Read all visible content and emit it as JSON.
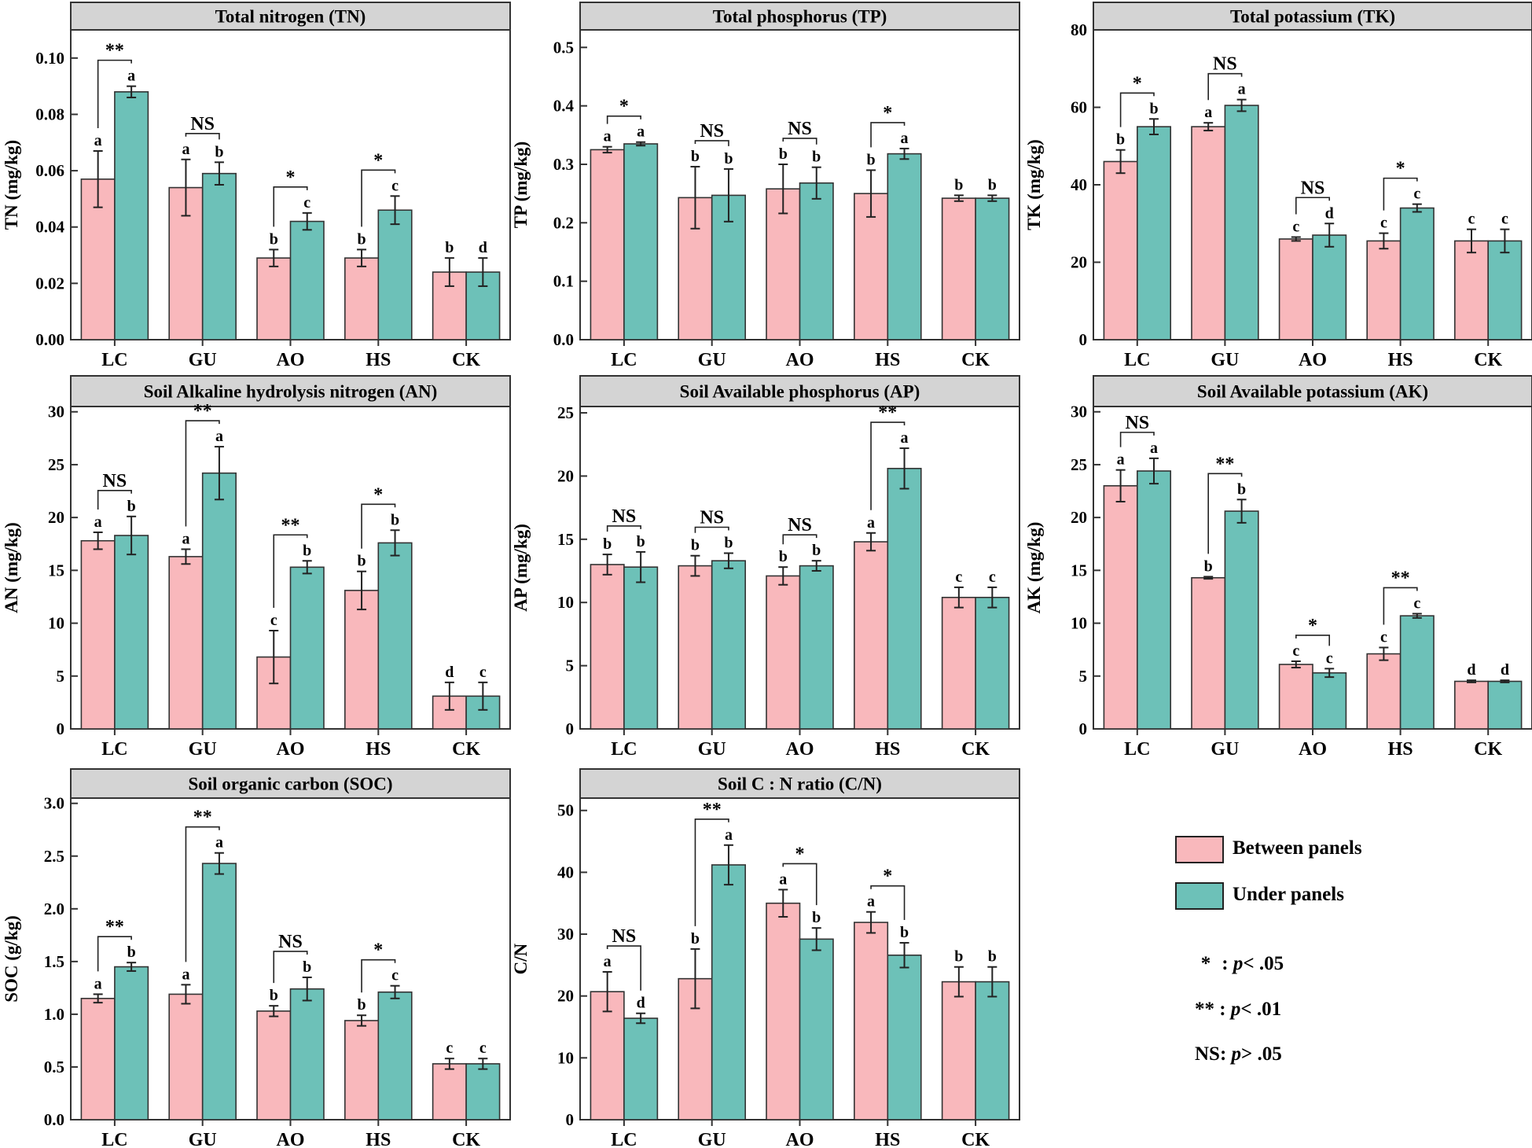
{
  "legend": {
    "series": [
      {
        "name": "Between panels",
        "color": "#f9b8bc"
      },
      {
        "name": "Under panels",
        "color": "#6dc1b8"
      }
    ],
    "notes": [
      {
        "symbol": "*",
        "sep": " : ",
        "p": "p",
        "rel": "< .05"
      },
      {
        "symbol": "**",
        "sep": " : ",
        "p": "p",
        "rel": "< .01"
      },
      {
        "symbol": "NS",
        "sep": ": ",
        "p": "p",
        "rel": "> .05"
      }
    ]
  },
  "chart_data": [
    {
      "type": "bar",
      "title": "Total nitrogen (TN)",
      "ylabel": "TN (mg/kg)",
      "categories": [
        "LC",
        "GU",
        "AO",
        "HS",
        "CK"
      ],
      "ylim": [
        0,
        0.11
      ],
      "yticks": [
        0,
        0.02,
        0.04,
        0.06,
        0.08,
        0.1
      ],
      "ytick_labels": [
        "0.00",
        "0.02",
        "0.04",
        "0.06",
        "0.08",
        "0.10"
      ],
      "series": [
        {
          "name": "Between panels",
          "values": [
            0.057,
            0.054,
            0.029,
            0.029,
            0.024
          ],
          "errors": [
            0.01,
            0.01,
            0.003,
            0.003,
            0.005
          ],
          "letters": [
            "a",
            "a",
            "b",
            "b",
            "b"
          ]
        },
        {
          "name": "Under panels",
          "values": [
            0.088,
            0.059,
            0.042,
            0.046,
            0.024
          ],
          "errors": [
            0.002,
            0.004,
            0.003,
            0.005,
            0.005
          ],
          "letters": [
            "a",
            "b",
            "c",
            "c",
            "d"
          ]
        }
      ],
      "significance": [
        "**",
        "NS",
        "*",
        "*",
        ""
      ]
    },
    {
      "type": "bar",
      "title": "Total phosphorus (TP)",
      "ylabel": "TP (mg/kg)",
      "categories": [
        "LC",
        "GU",
        "AO",
        "HS",
        "CK"
      ],
      "ylim": [
        0,
        0.53
      ],
      "yticks": [
        0,
        0.1,
        0.2,
        0.3,
        0.4,
        0.5
      ],
      "ytick_labels": [
        "0.0",
        "0.1",
        "0.2",
        "0.3",
        "0.4",
        "0.5"
      ],
      "series": [
        {
          "name": "Between panels",
          "values": [
            0.325,
            0.243,
            0.258,
            0.25,
            0.242
          ],
          "errors": [
            0.005,
            0.053,
            0.042,
            0.04,
            0.005
          ],
          "letters": [
            "a",
            "b",
            "b",
            "b",
            "b"
          ]
        },
        {
          "name": "Under panels",
          "values": [
            0.335,
            0.247,
            0.268,
            0.318,
            0.242
          ],
          "errors": [
            0.003,
            0.045,
            0.027,
            0.009,
            0.005
          ],
          "letters": [
            "a",
            "b",
            "b",
            "a",
            "b"
          ]
        }
      ],
      "significance": [
        "*",
        "NS",
        "NS",
        "*",
        ""
      ]
    },
    {
      "type": "bar",
      "title": "Total  potassium (TK)",
      "ylabel": "TK (mg/kg)",
      "categories": [
        "LC",
        "GU",
        "AO",
        "HS",
        "CK"
      ],
      "ylim": [
        0,
        80
      ],
      "yticks": [
        0,
        20,
        40,
        60,
        80
      ],
      "ytick_labels": [
        "0",
        "20",
        "40",
        "60",
        "80"
      ],
      "series": [
        {
          "name": "Between panels",
          "values": [
            46,
            55,
            26,
            25.5,
            25.5
          ],
          "errors": [
            3.0,
            1.0,
            0.5,
            2.0,
            3.0
          ],
          "letters": [
            "b",
            "a",
            "c",
            "c",
            "c"
          ]
        },
        {
          "name": "Under panels",
          "values": [
            55,
            60.5,
            27,
            34,
            25.5
          ],
          "errors": [
            2.0,
            1.5,
            3.0,
            1.0,
            3.0
          ],
          "letters": [
            "b",
            "a",
            "d",
            "c",
            "c"
          ]
        }
      ],
      "significance": [
        "*",
        "NS",
        "NS",
        "*",
        ""
      ]
    },
    {
      "type": "bar",
      "title": "Soil Alkaline hydrolysis nitrogen (AN)",
      "ylabel": "AN (mg/kg)",
      "categories": [
        "LC",
        "GU",
        "AO",
        "HS",
        "CK"
      ],
      "ylim": [
        0,
        30.5
      ],
      "yticks": [
        0,
        5,
        10,
        15,
        20,
        25,
        30
      ],
      "ytick_labels": [
        "0",
        "5",
        "10",
        "15",
        "20",
        "25",
        "30"
      ],
      "series": [
        {
          "name": "Between panels",
          "values": [
            17.8,
            16.3,
            6.8,
            13.1,
            3.1
          ],
          "errors": [
            0.8,
            0.7,
            2.5,
            1.8,
            1.3
          ],
          "letters": [
            "a",
            "a",
            "c",
            "b",
            "d"
          ]
        },
        {
          "name": "Under panels",
          "values": [
            18.3,
            24.2,
            15.3,
            17.6,
            3.1
          ],
          "errors": [
            1.8,
            2.5,
            0.6,
            1.2,
            1.3
          ],
          "letters": [
            "b",
            "a",
            "b",
            "b",
            "c"
          ]
        }
      ],
      "significance": [
        "NS",
        "**",
        "**",
        "*",
        ""
      ]
    },
    {
      "type": "bar",
      "title": "Soil Available phosphorus (AP)",
      "ylabel": "AP (mg/kg)",
      "categories": [
        "LC",
        "GU",
        "AO",
        "HS",
        "CK"
      ],
      "ylim": [
        0,
        25.5
      ],
      "yticks": [
        0,
        5,
        10,
        15,
        20,
        25
      ],
      "ytick_labels": [
        "0",
        "5",
        "10",
        "15",
        "20",
        "25"
      ],
      "series": [
        {
          "name": "Between panels",
          "values": [
            13.0,
            12.9,
            12.1,
            14.8,
            10.4
          ],
          "errors": [
            0.8,
            0.8,
            0.7,
            0.7,
            0.8
          ],
          "letters": [
            "b",
            "b",
            "b",
            "a",
            "c"
          ]
        },
        {
          "name": "Under panels",
          "values": [
            12.8,
            13.3,
            12.9,
            20.6,
            10.4
          ],
          "errors": [
            1.2,
            0.6,
            0.4,
            1.6,
            0.8
          ],
          "letters": [
            "b",
            "b",
            "b",
            "a",
            "c"
          ]
        }
      ],
      "significance": [
        "NS",
        "NS",
        "NS",
        "**",
        ""
      ]
    },
    {
      "type": "bar",
      "title": "Soil Available potassium (AK)",
      "ylabel": "AK (mg/kg)",
      "categories": [
        "LC",
        "GU",
        "AO",
        "HS",
        "CK"
      ],
      "ylim": [
        0,
        30.5
      ],
      "yticks": [
        0,
        5,
        10,
        15,
        20,
        25,
        30
      ],
      "ytick_labels": [
        "0",
        "5",
        "10",
        "15",
        "20",
        "25",
        "30"
      ],
      "series": [
        {
          "name": "Between panels",
          "values": [
            23.0,
            14.3,
            6.1,
            7.1,
            4.5
          ],
          "errors": [
            1.5,
            0.1,
            0.3,
            0.6,
            0.1
          ],
          "letters": [
            "a",
            "b",
            "c",
            "c",
            "d"
          ]
        },
        {
          "name": "Under panels",
          "values": [
            24.4,
            20.6,
            5.3,
            10.7,
            4.5
          ],
          "errors": [
            1.2,
            1.1,
            0.4,
            0.2,
            0.1
          ],
          "letters": [
            "a",
            "b",
            "c",
            "c",
            "d"
          ]
        }
      ],
      "significance": [
        "NS",
        "**",
        "*",
        "**",
        ""
      ]
    },
    {
      "type": "bar",
      "title": "Soil organic carbon (SOC)",
      "ylabel": "SOC (g/kg)",
      "categories": [
        "LC",
        "GU",
        "AO",
        "HS",
        "CK"
      ],
      "ylim": [
        0,
        3.05
      ],
      "yticks": [
        0,
        0.5,
        1.0,
        1.5,
        2.0,
        2.5,
        3.0
      ],
      "ytick_labels": [
        "0.0",
        "0.5",
        "1.0",
        "1.5",
        "2.0",
        "2.5",
        "3.0"
      ],
      "series": [
        {
          "name": "Between panels",
          "values": [
            1.15,
            1.19,
            1.03,
            0.94,
            0.53
          ],
          "errors": [
            0.04,
            0.09,
            0.05,
            0.05,
            0.05
          ],
          "letters": [
            "a",
            "a",
            "b",
            "b",
            "c"
          ]
        },
        {
          "name": "Under panels",
          "values": [
            1.45,
            2.43,
            1.24,
            1.21,
            0.53
          ],
          "errors": [
            0.04,
            0.1,
            0.11,
            0.06,
            0.05
          ],
          "letters": [
            "b",
            "a",
            "b",
            "c",
            "c"
          ]
        }
      ],
      "significance": [
        "**",
        "**",
        "NS",
        "*",
        ""
      ]
    },
    {
      "type": "bar",
      "title": "Soil C : N ratio (C/N)",
      "ylabel": "C/N",
      "categories": [
        "LC",
        "GU",
        "AO",
        "HS",
        "CK"
      ],
      "ylim": [
        0,
        52
      ],
      "yticks": [
        0,
        10,
        20,
        30,
        40,
        50
      ],
      "ytick_labels": [
        "0",
        "10",
        "20",
        "30",
        "40",
        "50"
      ],
      "series": [
        {
          "name": "Between panels",
          "values": [
            20.7,
            22.8,
            35.0,
            31.9,
            22.3
          ],
          "errors": [
            3.2,
            4.8,
            2.2,
            1.7,
            2.4
          ],
          "letters": [
            "a",
            "b",
            "a",
            "a",
            "b"
          ]
        },
        {
          "name": "Under panels",
          "values": [
            16.4,
            41.2,
            29.2,
            26.6,
            22.3
          ],
          "errors": [
            0.8,
            3.2,
            1.8,
            2.0,
            2.4
          ],
          "letters": [
            "d",
            "a",
            "b",
            "b",
            "b"
          ]
        }
      ],
      "significance": [
        "NS",
        "**",
        "*",
        "*",
        ""
      ]
    }
  ]
}
